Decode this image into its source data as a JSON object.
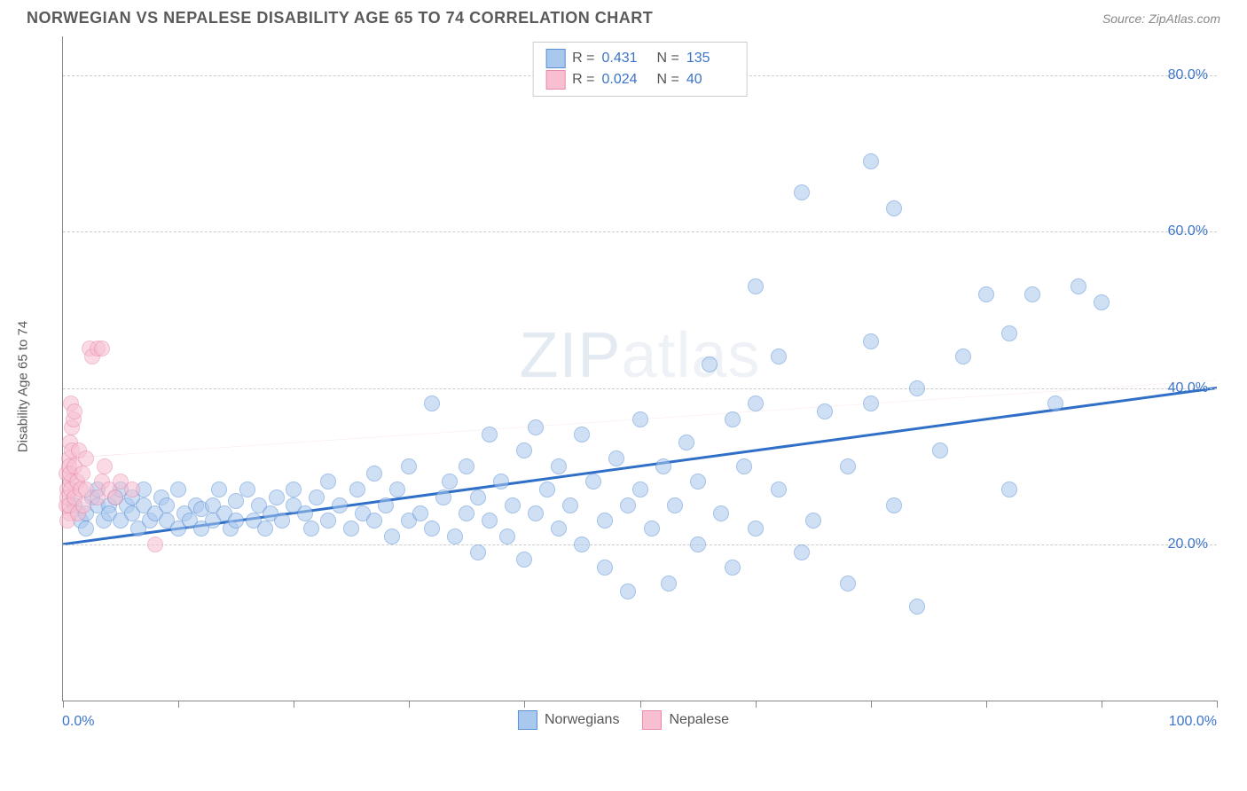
{
  "header": {
    "title": "NORWEGIAN VS NEPALESE DISABILITY AGE 65 TO 74 CORRELATION CHART",
    "source": "Source: ZipAtlas.com"
  },
  "chart": {
    "type": "scatter",
    "y_label": "Disability Age 65 to 74",
    "watermark_prefix": "ZIP",
    "watermark_suffix": "atlas",
    "background_color": "#ffffff",
    "grid_color": "#cccccc",
    "axis_color": "#888888",
    "value_color": "#3b74c9",
    "xlim": [
      0,
      100
    ],
    "ylim": [
      0,
      85
    ],
    "x_ticks": [
      0,
      10,
      20,
      30,
      40,
      50,
      60,
      70,
      80,
      90,
      100
    ],
    "x_tick_labels": {
      "0": "0.0%",
      "100": "100.0%"
    },
    "y_gridlines": [
      20,
      40,
      60,
      80
    ],
    "y_tick_labels": {
      "20": "20.0%",
      "40": "40.0%",
      "60": "60.0%",
      "80": "80.0%"
    },
    "point_radius": 9,
    "point_opacity": 0.55,
    "series": [
      {
        "name": "Norwegians",
        "color_fill": "#a9c8ee",
        "color_stroke": "#5b8fd6",
        "R_label": "R =",
        "R": "0.431",
        "N_label": "N =",
        "N": "135",
        "trend": {
          "x1": 0,
          "y1": 20,
          "x2": 100,
          "y2": 40,
          "color": "#2f6fc8",
          "width": 3,
          "dash": "none"
        },
        "points": [
          [
            1,
            25
          ],
          [
            1.5,
            23
          ],
          [
            2,
            24
          ],
          [
            2.5,
            26
          ],
          [
            2,
            22
          ],
          [
            3,
            25
          ],
          [
            3,
            27
          ],
          [
            3.5,
            23
          ],
          [
            4,
            25
          ],
          [
            4,
            24
          ],
          [
            4.5,
            26
          ],
          [
            5,
            23
          ],
          [
            5,
            27
          ],
          [
            5.5,
            25
          ],
          [
            6,
            24
          ],
          [
            6,
            26
          ],
          [
            6.5,
            22
          ],
          [
            7,
            25
          ],
          [
            7,
            27
          ],
          [
            7.5,
            23
          ],
          [
            8,
            24
          ],
          [
            8.5,
            26
          ],
          [
            9,
            23
          ],
          [
            9,
            25
          ],
          [
            10,
            22
          ],
          [
            10,
            27
          ],
          [
            10.5,
            24
          ],
          [
            11,
            23
          ],
          [
            11.5,
            25
          ],
          [
            12,
            22
          ],
          [
            12,
            24.5
          ],
          [
            13,
            23
          ],
          [
            13,
            25
          ],
          [
            13.5,
            27
          ],
          [
            14,
            24
          ],
          [
            14.5,
            22
          ],
          [
            15,
            23
          ],
          [
            15,
            25.5
          ],
          [
            16,
            27
          ],
          [
            16.5,
            23
          ],
          [
            17,
            25
          ],
          [
            17.5,
            22
          ],
          [
            18,
            24
          ],
          [
            18.5,
            26
          ],
          [
            19,
            23
          ],
          [
            20,
            25
          ],
          [
            20,
            27
          ],
          [
            21,
            24
          ],
          [
            21.5,
            22
          ],
          [
            22,
            26
          ],
          [
            23,
            23
          ],
          [
            23,
            28
          ],
          [
            24,
            25
          ],
          [
            25,
            22
          ],
          [
            25.5,
            27
          ],
          [
            26,
            24
          ],
          [
            27,
            23
          ],
          [
            27,
            29
          ],
          [
            28,
            25
          ],
          [
            28.5,
            21
          ],
          [
            29,
            27
          ],
          [
            30,
            23
          ],
          [
            30,
            30
          ],
          [
            31,
            24
          ],
          [
            32,
            38
          ],
          [
            32,
            22
          ],
          [
            33,
            26
          ],
          [
            33.5,
            28
          ],
          [
            34,
            21
          ],
          [
            35,
            24
          ],
          [
            35,
            30
          ],
          [
            36,
            26
          ],
          [
            36,
            19
          ],
          [
            37,
            23
          ],
          [
            37,
            34
          ],
          [
            38,
            28
          ],
          [
            38.5,
            21
          ],
          [
            39,
            25
          ],
          [
            40,
            32
          ],
          [
            40,
            18
          ],
          [
            41,
            24
          ],
          [
            41,
            35
          ],
          [
            42,
            27
          ],
          [
            43,
            22
          ],
          [
            43,
            30
          ],
          [
            44,
            25
          ],
          [
            45,
            34
          ],
          [
            45,
            20
          ],
          [
            46,
            28
          ],
          [
            47,
            23
          ],
          [
            47,
            17
          ],
          [
            48,
            31
          ],
          [
            49,
            25
          ],
          [
            49,
            14
          ],
          [
            50,
            27
          ],
          [
            50,
            36
          ],
          [
            51,
            22
          ],
          [
            52,
            30
          ],
          [
            52.5,
            15
          ],
          [
            53,
            25
          ],
          [
            54,
            33
          ],
          [
            55,
            20
          ],
          [
            55,
            28
          ],
          [
            56,
            43
          ],
          [
            57,
            24
          ],
          [
            58,
            36
          ],
          [
            58,
            17
          ],
          [
            59,
            30
          ],
          [
            60,
            53
          ],
          [
            60,
            22
          ],
          [
            62,
            27
          ],
          [
            62,
            44
          ],
          [
            64,
            65
          ],
          [
            64,
            19
          ],
          [
            65,
            23
          ],
          [
            66,
            37
          ],
          [
            68,
            15
          ],
          [
            68,
            30
          ],
          [
            70,
            46
          ],
          [
            70,
            69
          ],
          [
            72,
            25
          ],
          [
            72,
            63
          ],
          [
            74,
            40
          ],
          [
            74,
            12
          ],
          [
            76,
            32
          ],
          [
            78,
            44
          ],
          [
            80,
            52
          ],
          [
            82,
            47
          ],
          [
            82,
            27
          ],
          [
            84,
            52
          ],
          [
            86,
            38
          ],
          [
            88,
            53
          ],
          [
            90,
            51
          ],
          [
            70,
            38
          ],
          [
            60,
            38
          ]
        ]
      },
      {
        "name": "Nepalese",
        "color_fill": "#f7bfd0",
        "color_stroke": "#e88aac",
        "R_label": "R =",
        "R": "0.024",
        "N_label": "N =",
        "N": "40",
        "trend": {
          "x1": 0,
          "y1": 31,
          "x2": 100,
          "y2": 41,
          "color": "#e88aac",
          "width": 1.5,
          "dash": "6,5",
          "solid_until_x": 5
        },
        "points": [
          [
            0.3,
            25
          ],
          [
            0.4,
            27
          ],
          [
            0.3,
            29
          ],
          [
            0.5,
            31
          ],
          [
            0.6,
            24
          ],
          [
            0.4,
            26
          ],
          [
            0.7,
            28
          ],
          [
            0.5,
            30
          ],
          [
            0.6,
            33
          ],
          [
            0.8,
            35
          ],
          [
            0.4,
            23
          ],
          [
            0.5,
            25
          ],
          [
            0.7,
            27
          ],
          [
            0.6,
            29
          ],
          [
            0.8,
            32
          ],
          [
            0.9,
            36
          ],
          [
            0.7,
            38
          ],
          [
            1.0,
            26
          ],
          [
            1.2,
            28
          ],
          [
            1.0,
            30
          ],
          [
            1.3,
            24
          ],
          [
            1.5,
            27
          ],
          [
            1.4,
            32
          ],
          [
            1.7,
            29
          ],
          [
            1.8,
            25
          ],
          [
            2.0,
            31
          ],
          [
            2.0,
            27
          ],
          [
            2.3,
            45
          ],
          [
            2.5,
            44
          ],
          [
            3.0,
            45
          ],
          [
            3.0,
            26
          ],
          [
            3.4,
            28
          ],
          [
            3.4,
            45
          ],
          [
            3.6,
            30
          ],
          [
            4.0,
            27
          ],
          [
            4.5,
            26
          ],
          [
            5.0,
            28
          ],
          [
            6.0,
            27
          ],
          [
            8.0,
            20
          ],
          [
            1.0,
            37
          ]
        ]
      }
    ],
    "legend_bottom": [
      "Norwegians",
      "Nepalese"
    ]
  }
}
